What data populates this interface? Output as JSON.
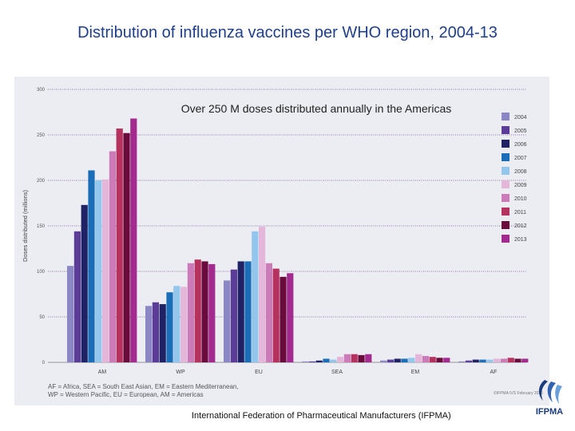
{
  "slide_title": "Distribution of influenza vaccines per WHO region, 2004-13",
  "credit": "International Federation of Pharmaceutical Manufacturers (IFPMA)",
  "logo_text": "IFPMA",
  "footnote_lines": [
    "AF = Africa, SEA = South East Asian, EM = Eastern Mediterranean,",
    "WP = Western Pacific, EU = European, AM = Americas"
  ],
  "copyright": "©IFPMA IVS February 2015",
  "chart_data": {
    "type": "bar",
    "title": "Over 250 M doses distributed annually in the Americas",
    "ylabel": "Doses distributed (millions)",
    "xlabel": "",
    "ylim": [
      0,
      300
    ],
    "yticks": [
      0,
      50,
      100,
      150,
      200,
      250,
      300
    ],
    "grid": true,
    "legend_position": "right",
    "categories": [
      "AM",
      "WP",
      "EU",
      "SEA",
      "EM",
      "AF"
    ],
    "series": [
      {
        "name": "2004",
        "color": "#8b86c4",
        "values": [
          106,
          62,
          90,
          1,
          2,
          1
        ]
      },
      {
        "name": "2005",
        "color": "#5b3c99",
        "values": [
          144,
          66,
          102,
          1,
          3,
          2
        ]
      },
      {
        "name": "2006",
        "color": "#1f2366",
        "values": [
          173,
          64,
          111,
          2,
          4,
          3
        ]
      },
      {
        "name": "2007",
        "color": "#1a6eb8",
        "values": [
          211,
          77,
          111,
          4,
          4,
          3
        ]
      },
      {
        "name": "2008",
        "color": "#93c6ec",
        "values": [
          200,
          84,
          144,
          3,
          5,
          3
        ]
      },
      {
        "name": "2009",
        "color": "#e4b6da",
        "values": [
          201,
          83,
          149,
          6,
          9,
          4
        ]
      },
      {
        "name": "2010",
        "color": "#cc7ab8",
        "values": [
          232,
          109,
          109,
          9,
          7,
          4
        ]
      },
      {
        "name": "2011",
        "color": "#b5325f",
        "values": [
          257,
          113,
          103,
          9,
          6,
          5
        ]
      },
      {
        "name": "2012",
        "color": "#6b0a3c",
        "values": [
          252,
          111,
          94,
          8,
          5,
          4
        ]
      },
      {
        "name": "2013",
        "color": "#a32a8f",
        "values": [
          268,
          108,
          98,
          9,
          5,
          4
        ]
      }
    ]
  }
}
